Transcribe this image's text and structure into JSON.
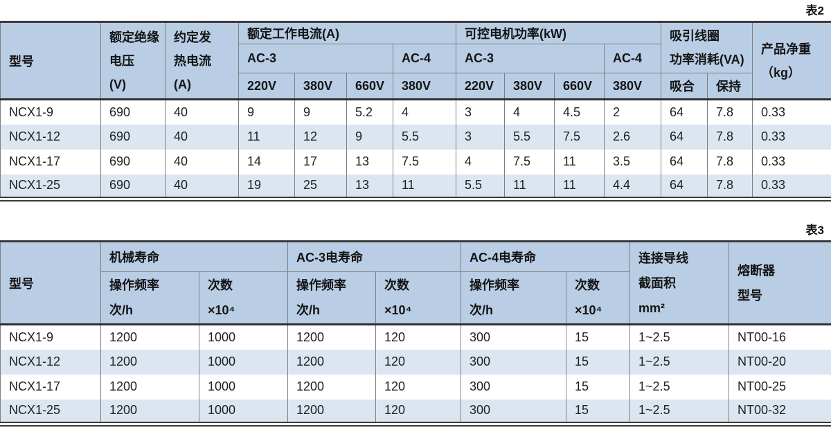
{
  "colors": {
    "header_bg": "#b9cde5",
    "row_alt_bg": "#dce6f1",
    "row_bg": "#ffffff",
    "grid_line": "#7f7f7f",
    "frame_line": "#3a3a3a",
    "text": "#1a1a1a"
  },
  "table2": {
    "caption": "表2",
    "header": {
      "model": "型号",
      "insulation_voltage": "额定绝缘\n电压\n(V)",
      "thermal_current": "约定发\n热电流\n(A)",
      "rated_current_group": "额定工作电流(A)",
      "motor_power_group": "可控电机功率(kW)",
      "coil_group": "吸引线圈\n功率消耗(VA)",
      "net_weight": "产品净重\n（kg）",
      "ac3": "AC-3",
      "ac4": "AC-4",
      "v220": "220V",
      "v380": "380V",
      "v660": "660V",
      "pickup": "吸合",
      "hold": "保持"
    },
    "rows": [
      [
        "NCX1-9",
        "690",
        "40",
        "9",
        "9",
        "5.2",
        "4",
        "3",
        "4",
        "4.5",
        "2",
        "64",
        "7.8",
        "0.33"
      ],
      [
        "NCX1-12",
        "690",
        "40",
        "11",
        "12",
        "9",
        "5.5",
        "3",
        "5.5",
        "7.5",
        "2.6",
        "64",
        "7.8",
        "0.33"
      ],
      [
        "NCX1-17",
        "690",
        "40",
        "14",
        "17",
        "13",
        "7.5",
        "4",
        "7.5",
        "11",
        "3.5",
        "64",
        "7.8",
        "0.33"
      ],
      [
        "NCX1-25",
        "690",
        "40",
        "19",
        "25",
        "13",
        "11",
        "5.5",
        "11",
        "11",
        "4.4",
        "64",
        "7.8",
        "0.33"
      ]
    ]
  },
  "table3": {
    "caption": "表3",
    "header": {
      "model": "型号",
      "mech_life_group": "机械寿命",
      "ac3_life_group": "AC-3电寿命",
      "ac4_life_group": "AC-4电寿命",
      "wire_area": "连接导线\n截面积\nmm²",
      "fuse_model": "熔断器\n型号",
      "op_freq": "操作频率\n次/h",
      "cycles": "次数\n×10⁴"
    },
    "rows": [
      [
        "NCX1-9",
        "1200",
        "1000",
        "1200",
        "120",
        "300",
        "15",
        "1~2.5",
        "NT00-16"
      ],
      [
        "NCX1-12",
        "1200",
        "1000",
        "1200",
        "120",
        "300",
        "15",
        "1~2.5",
        "NT00-20"
      ],
      [
        "NCX1-17",
        "1200",
        "1000",
        "1200",
        "120",
        "300",
        "15",
        "1~2.5",
        "NT00-25"
      ],
      [
        "NCX1-25",
        "1200",
        "1000",
        "1200",
        "120",
        "300",
        "15",
        "1~2.5",
        "NT00-32"
      ]
    ]
  }
}
